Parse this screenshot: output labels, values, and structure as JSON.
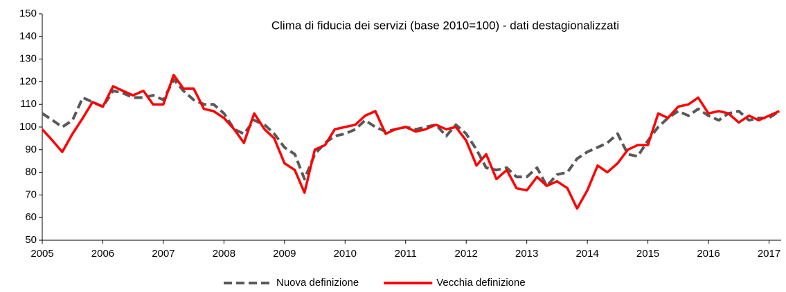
{
  "chart_data": {
    "type": "line",
    "title": "Clima di fiducia dei servizi (base 2010=100) - dati destagionalizzati",
    "x": [
      2005,
      2005.17,
      2005.33,
      2005.5,
      2005.67,
      2005.83,
      2006,
      2006.17,
      2006.33,
      2006.5,
      2006.67,
      2006.83,
      2007,
      2007.17,
      2007.33,
      2007.5,
      2007.67,
      2007.83,
      2008,
      2008.17,
      2008.33,
      2008.5,
      2008.67,
      2008.83,
      2009,
      2009.17,
      2009.33,
      2009.5,
      2009.67,
      2009.83,
      2010,
      2010.17,
      2010.33,
      2010.5,
      2010.67,
      2010.83,
      2011,
      2011.17,
      2011.33,
      2011.5,
      2011.67,
      2011.83,
      2012,
      2012.17,
      2012.33,
      2012.5,
      2012.67,
      2012.83,
      2013,
      2013.17,
      2013.33,
      2013.5,
      2013.67,
      2013.83,
      2014,
      2014.17,
      2014.33,
      2014.5,
      2014.67,
      2014.83,
      2015,
      2015.17,
      2015.33,
      2015.5,
      2015.67,
      2015.83,
      2016,
      2016.17,
      2016.33,
      2016.5,
      2016.67,
      2016.83,
      2017,
      2017.17
    ],
    "series": [
      {
        "name": "Nuova definizione",
        "color": "#595959",
        "dashed": true,
        "values": [
          106,
          103,
          100,
          103,
          113,
          111,
          109,
          116,
          115,
          113,
          113,
          114,
          112,
          121,
          116,
          112,
          110,
          110,
          106,
          99,
          97,
          103,
          101,
          97,
          91,
          88,
          77,
          88,
          93,
          96,
          97,
          99,
          103,
          100,
          98,
          99,
          100,
          99,
          100,
          101,
          96,
          101,
          97,
          90,
          82,
          81,
          82,
          78,
          78,
          82,
          74,
          79,
          80,
          86,
          89,
          91,
          93,
          97,
          88,
          87,
          94,
          100,
          104,
          107,
          105,
          108,
          105,
          103,
          106,
          107,
          103,
          104,
          104,
          107
        ]
      },
      {
        "name": "Vecchia definizione",
        "color": "#ff0000",
        "dashed": false,
        "values": [
          99,
          94,
          89,
          97,
          104,
          111,
          109,
          118,
          116,
          114,
          116,
          110,
          110,
          123,
          117,
          117,
          108,
          107,
          104,
          99,
          93,
          106,
          99,
          95,
          84,
          81,
          71,
          90,
          92,
          99,
          100,
          101,
          105,
          107,
          97,
          99,
          100,
          98,
          99,
          101,
          99,
          100,
          94,
          83,
          88,
          77,
          81,
          73,
          72,
          78,
          74,
          76,
          73,
          64,
          72,
          83,
          80,
          84,
          90,
          92,
          92,
          106,
          104,
          109,
          110,
          113,
          106,
          107,
          106,
          102,
          105,
          103,
          105,
          107
        ]
      }
    ],
    "xlim": [
      2005,
      2017.2
    ],
    "xticks": [
      2005,
      2006,
      2007,
      2008,
      2009,
      2010,
      2011,
      2012,
      2013,
      2014,
      2015,
      2016,
      2017
    ],
    "ylim": [
      50,
      150
    ],
    "yticks": [
      50,
      60,
      70,
      80,
      90,
      100,
      110,
      120,
      130,
      140,
      150
    ],
    "legend": "bottom"
  }
}
